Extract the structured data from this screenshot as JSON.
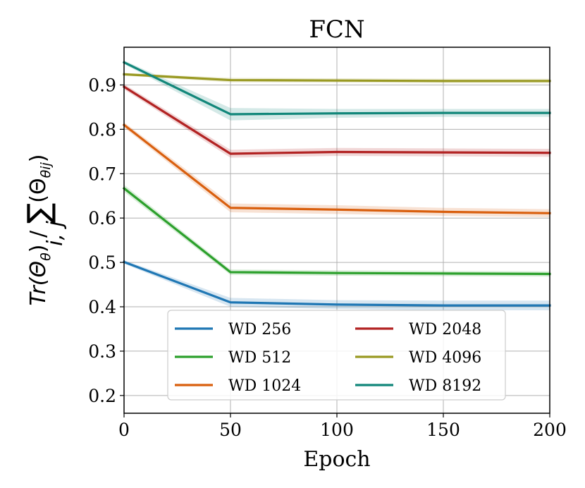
{
  "chart_data": {
    "type": "line",
    "title": "FCN",
    "xlabel": "Epoch",
    "ylabel": "Tr(Θθ) / Σi,j(Θθij)",
    "ylabel_parts": {
      "tr": "Tr(Θ",
      "theta_sub": "θ",
      "mid": ") / ",
      "sigma": "∑",
      "sum_sub": "i, j",
      "open": "(Θ",
      "theta_ij_sub": "θij",
      "close": ")"
    },
    "xlim": [
      0,
      200
    ],
    "ylim": [
      0.16,
      0.985
    ],
    "xticks": [
      0,
      50,
      100,
      150,
      200
    ],
    "xtick_labels": [
      "0",
      "50",
      "100",
      "150",
      "200"
    ],
    "yticks": [
      0.2,
      0.3,
      0.4,
      0.5,
      0.6,
      0.7,
      0.8,
      0.9
    ],
    "ytick_labels": [
      "0.2",
      "0.3",
      "0.4",
      "0.5",
      "0.6",
      "0.7",
      "0.8",
      "0.9"
    ],
    "grid": true,
    "legend_position": "lower-center",
    "x": [
      0,
      50,
      100,
      150,
      200
    ],
    "series": [
      {
        "name": "WD 256",
        "color": "#1f77b4",
        "values": [
          0.501,
          0.41,
          0.405,
          0.403,
          0.403
        ],
        "band": [
          0.004,
          0.01,
          0.01,
          0.011,
          0.011
        ]
      },
      {
        "name": "WD 512",
        "color": "#2ca02c",
        "values": [
          0.667,
          0.478,
          0.476,
          0.475,
          0.474
        ],
        "band": [
          0.008,
          0.006,
          0.006,
          0.006,
          0.006
        ]
      },
      {
        "name": "WD 1024",
        "color": "#d95f0e",
        "values": [
          0.81,
          0.623,
          0.619,
          0.614,
          0.611
        ],
        "band": [
          0.006,
          0.01,
          0.01,
          0.009,
          0.009
        ]
      },
      {
        "name": "WD 2048",
        "color": "#b22222",
        "values": [
          0.896,
          0.745,
          0.749,
          0.748,
          0.747
        ],
        "band": [
          0.006,
          0.009,
          0.009,
          0.009,
          0.009
        ]
      },
      {
        "name": "WD 4096",
        "color": "#999922",
        "values": [
          0.924,
          0.911,
          0.91,
          0.909,
          0.909
        ],
        "band": [
          0.003,
          0.005,
          0.005,
          0.005,
          0.005
        ]
      },
      {
        "name": "WD 8192",
        "color": "#12877a",
        "values": [
          0.951,
          0.834,
          0.836,
          0.837,
          0.837
        ],
        "band": [
          0.004,
          0.014,
          0.01,
          0.009,
          0.009
        ]
      }
    ]
  }
}
